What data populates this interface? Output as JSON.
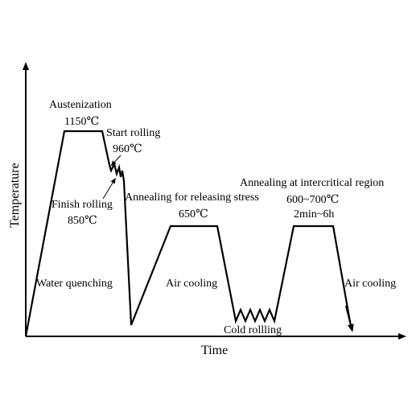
{
  "axes": {
    "x_label": "Time",
    "y_label": "Temperature"
  },
  "stages": {
    "austenization": {
      "label": "Austenization",
      "temp": "1150℃"
    },
    "start_rolling": {
      "label": "Start rolling",
      "temp": "960℃"
    },
    "finish_rolling": {
      "label": "Finish rolling",
      "temp": "850℃"
    },
    "water_quenching": {
      "label": "Water quenching"
    },
    "stress_annealing": {
      "label": "Annealing for releasing stress",
      "temp": "650℃"
    },
    "air_cooling_1": {
      "label": "Air cooling"
    },
    "cold_rolling": {
      "label": "Cold rollling"
    },
    "intercritical_annealing": {
      "label": "Annealing at intercritical region",
      "temp": "600~700℃",
      "time": "2min~6h"
    },
    "air_cooling_2": {
      "label": "Air cooling"
    }
  }
}
